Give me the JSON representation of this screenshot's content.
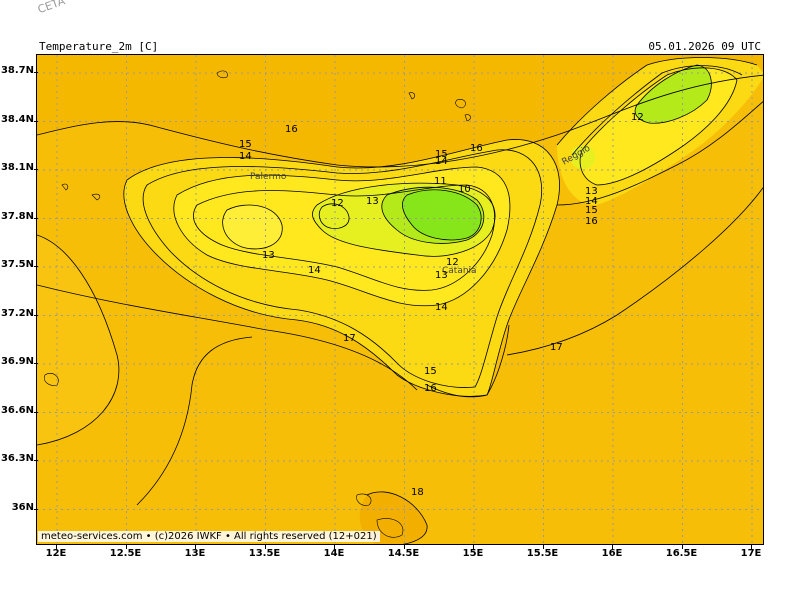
{
  "watermark": "CETA - IWKF",
  "header": {
    "title": "Temperature_2m [C]",
    "datetime": "05.01.2026 09 UTC"
  },
  "footer": "meteo-services.com • (c)2026 IWKF • All rights reserved (12+021)",
  "axes": {
    "y_labels": [
      "38.7N",
      "38.4N",
      "38.1N",
      "37.8N",
      "37.5N",
      "37.2N",
      "36.9N",
      "36.6N",
      "36.3N",
      "36N"
    ],
    "x_labels": [
      "12E",
      "12.5E",
      "13E",
      "13.5E",
      "14E",
      "14.5E",
      "15E",
      "15.5E",
      "16E",
      "16.5E",
      "17E"
    ],
    "grid": "dotted"
  },
  "cities": [
    "Palermo",
    "Catania",
    "Reggio"
  ],
  "contour_labels": [
    "16",
    "15",
    "14",
    "15",
    "14",
    "16",
    "11",
    "10",
    "12",
    "13",
    "12",
    "13",
    "14",
    "13",
    "12",
    "14",
    "17",
    "15",
    "16",
    "13",
    "14",
    "15",
    "16",
    "17",
    "18"
  ],
  "colors": {
    "sea": "#F5B800",
    "warm": "#F9C60E",
    "mid": "#FBD913",
    "cool": "#FFE81E",
    "cooler": "#E6F020",
    "cold": "#B4EA1A",
    "coldest": "#86E61A",
    "contour": "#000000",
    "grid": "#9a9a9a"
  }
}
